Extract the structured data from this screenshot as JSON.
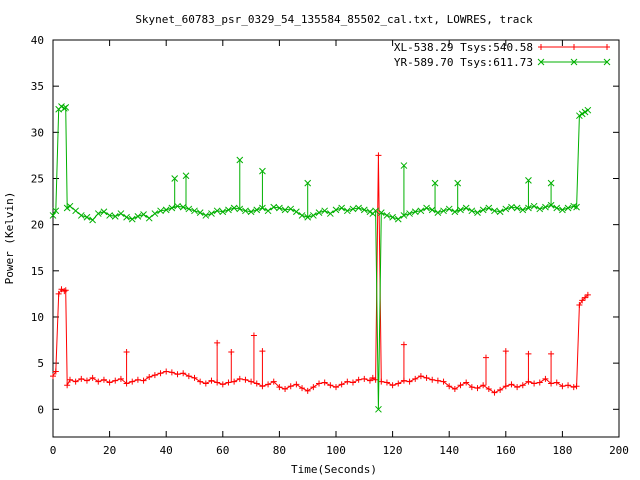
{
  "chart_data": {
    "type": "line",
    "title": "Skynet_60783_psr_0329_54_135584_85502_cal.txt, LOWRES, track",
    "xlabel": "Time(Seconds)",
    "ylabel": "Power (Kelvin)",
    "xlim": [
      0,
      200
    ],
    "ylim": [
      -3,
      40
    ],
    "x_ticks": [
      0,
      20,
      40,
      60,
      80,
      100,
      120,
      140,
      160,
      180,
      200
    ],
    "y_ticks": [
      0,
      5,
      10,
      15,
      20,
      25,
      30,
      35,
      40
    ],
    "grid": false,
    "legend_position": "top-right",
    "series": [
      {
        "name": "XL-538.29 Tsys:540.58",
        "color": "#ff0000",
        "marker": "plus",
        "points": [
          [
            0,
            3.6
          ],
          [
            1,
            4.1
          ],
          [
            2,
            12.5
          ],
          [
            3,
            13.0
          ],
          [
            4,
            12.8
          ],
          [
            4.5,
            12.9
          ],
          [
            5,
            2.6
          ],
          [
            6,
            3.2
          ],
          [
            8,
            3.0
          ],
          [
            10,
            3.3
          ],
          [
            12,
            3.1
          ],
          [
            14,
            3.4
          ],
          [
            16,
            3.0
          ],
          [
            18,
            3.2
          ],
          [
            20,
            2.9
          ],
          [
            22,
            3.1
          ],
          [
            24,
            3.3
          ],
          [
            26,
            2.8
          ],
          [
            28,
            3.0
          ],
          [
            30,
            3.2
          ],
          [
            32,
            3.1
          ],
          [
            34,
            3.5
          ],
          [
            36,
            3.7
          ],
          [
            38,
            3.9
          ],
          [
            40,
            4.1
          ],
          [
            42,
            4.0
          ],
          [
            44,
            3.8
          ],
          [
            46,
            3.9
          ],
          [
            48,
            3.6
          ],
          [
            50,
            3.4
          ],
          [
            52,
            3.0
          ],
          [
            54,
            2.8
          ],
          [
            56,
            3.1
          ],
          [
            58,
            2.9
          ],
          [
            60,
            2.7
          ],
          [
            62,
            2.9
          ],
          [
            64,
            3.0
          ],
          [
            66,
            3.3
          ],
          [
            68,
            3.2
          ],
          [
            70,
            3.0
          ],
          [
            72,
            2.8
          ],
          [
            74,
            2.5
          ],
          [
            76,
            2.7
          ],
          [
            78,
            3.0
          ],
          [
            80,
            2.4
          ],
          [
            82,
            2.2
          ],
          [
            84,
            2.5
          ],
          [
            86,
            2.7
          ],
          [
            88,
            2.3
          ],
          [
            90,
            2.0
          ],
          [
            92,
            2.4
          ],
          [
            94,
            2.8
          ],
          [
            96,
            2.9
          ],
          [
            98,
            2.6
          ],
          [
            100,
            2.4
          ],
          [
            102,
            2.7
          ],
          [
            104,
            3.0
          ],
          [
            106,
            2.9
          ],
          [
            108,
            3.2
          ],
          [
            110,
            3.3
          ],
          [
            112,
            3.1
          ],
          [
            113,
            3.4
          ],
          [
            114,
            3.2
          ],
          [
            115,
            27.5
          ],
          [
            116,
            3.0
          ],
          [
            118,
            2.9
          ],
          [
            120,
            2.6
          ],
          [
            122,
            2.8
          ],
          [
            124,
            3.1
          ],
          [
            126,
            3.0
          ],
          [
            128,
            3.3
          ],
          [
            130,
            3.6
          ],
          [
            132,
            3.4
          ],
          [
            134,
            3.2
          ],
          [
            136,
            3.1
          ],
          [
            138,
            3.0
          ],
          [
            140,
            2.5
          ],
          [
            142,
            2.2
          ],
          [
            144,
            2.6
          ],
          [
            146,
            2.9
          ],
          [
            148,
            2.4
          ],
          [
            150,
            2.3
          ],
          [
            152,
            2.6
          ],
          [
            154,
            2.2
          ],
          [
            156,
            1.8
          ],
          [
            158,
            2.1
          ],
          [
            160,
            2.5
          ],
          [
            162,
            2.7
          ],
          [
            164,
            2.4
          ],
          [
            166,
            2.6
          ],
          [
            168,
            3.0
          ],
          [
            170,
            2.8
          ],
          [
            172,
            2.9
          ],
          [
            174,
            3.3
          ],
          [
            176,
            2.8
          ],
          [
            178,
            2.9
          ],
          [
            180,
            2.5
          ],
          [
            182,
            2.6
          ],
          [
            184,
            2.4
          ],
          [
            185,
            2.5
          ],
          [
            186,
            11.3
          ],
          [
            187,
            11.8
          ],
          [
            188,
            12.1
          ],
          [
            189,
            12.4
          ]
        ]
      },
      {
        "name": "YR-589.70 Tsys:611.73",
        "color": "#00b000",
        "marker": "cross",
        "points": [
          [
            0,
            21.0
          ],
          [
            1,
            21.5
          ],
          [
            2,
            32.5
          ],
          [
            3,
            32.8
          ],
          [
            4,
            32.6
          ],
          [
            4.5,
            32.7
          ],
          [
            5,
            21.8
          ],
          [
            6,
            22.0
          ],
          [
            8,
            21.5
          ],
          [
            10,
            21.0
          ],
          [
            12,
            20.8
          ],
          [
            14,
            20.5
          ],
          [
            16,
            21.2
          ],
          [
            18,
            21.4
          ],
          [
            20,
            21.0
          ],
          [
            22,
            20.9
          ],
          [
            24,
            21.2
          ],
          [
            26,
            20.8
          ],
          [
            28,
            20.6
          ],
          [
            30,
            20.9
          ],
          [
            32,
            21.1
          ],
          [
            34,
            20.7
          ],
          [
            36,
            21.2
          ],
          [
            38,
            21.5
          ],
          [
            40,
            21.6
          ],
          [
            42,
            21.8
          ],
          [
            44,
            22.0
          ],
          [
            46,
            21.9
          ],
          [
            48,
            21.7
          ],
          [
            50,
            21.5
          ],
          [
            52,
            21.3
          ],
          [
            54,
            21.0
          ],
          [
            56,
            21.2
          ],
          [
            58,
            21.5
          ],
          [
            60,
            21.4
          ],
          [
            62,
            21.6
          ],
          [
            64,
            21.8
          ],
          [
            66,
            21.7
          ],
          [
            68,
            21.5
          ],
          [
            70,
            21.4
          ],
          [
            72,
            21.6
          ],
          [
            74,
            21.8
          ],
          [
            76,
            21.5
          ],
          [
            78,
            21.9
          ],
          [
            80,
            21.8
          ],
          [
            82,
            21.6
          ],
          [
            84,
            21.7
          ],
          [
            86,
            21.4
          ],
          [
            88,
            21.0
          ],
          [
            90,
            20.8
          ],
          [
            92,
            21.0
          ],
          [
            94,
            21.3
          ],
          [
            96,
            21.5
          ],
          [
            98,
            21.2
          ],
          [
            100,
            21.6
          ],
          [
            102,
            21.8
          ],
          [
            104,
            21.5
          ],
          [
            106,
            21.7
          ],
          [
            108,
            21.8
          ],
          [
            110,
            21.6
          ],
          [
            112,
            21.4
          ],
          [
            113,
            21.2
          ],
          [
            114,
            21.5
          ],
          [
            115,
            0.0
          ],
          [
            116,
            21.3
          ],
          [
            118,
            21.0
          ],
          [
            120,
            20.8
          ],
          [
            122,
            20.6
          ],
          [
            124,
            21.0
          ],
          [
            126,
            21.2
          ],
          [
            128,
            21.4
          ],
          [
            130,
            21.5
          ],
          [
            132,
            21.8
          ],
          [
            134,
            21.6
          ],
          [
            136,
            21.3
          ],
          [
            138,
            21.5
          ],
          [
            140,
            21.7
          ],
          [
            142,
            21.4
          ],
          [
            144,
            21.6
          ],
          [
            146,
            21.8
          ],
          [
            148,
            21.5
          ],
          [
            150,
            21.3
          ],
          [
            152,
            21.6
          ],
          [
            154,
            21.8
          ],
          [
            156,
            21.5
          ],
          [
            158,
            21.4
          ],
          [
            160,
            21.7
          ],
          [
            162,
            21.9
          ],
          [
            164,
            21.8
          ],
          [
            166,
            21.6
          ],
          [
            168,
            21.8
          ],
          [
            170,
            22.0
          ],
          [
            172,
            21.7
          ],
          [
            174,
            21.9
          ],
          [
            176,
            22.1
          ],
          [
            178,
            21.8
          ],
          [
            180,
            21.6
          ],
          [
            182,
            21.8
          ],
          [
            184,
            22.0
          ],
          [
            185,
            21.9
          ],
          [
            186,
            31.8
          ],
          [
            187,
            32.0
          ],
          [
            188,
            32.2
          ],
          [
            189,
            32.4
          ]
        ]
      }
    ],
    "spikes": {
      "XL-538.29 Tsys:540.58": [
        [
          26,
          6.2
        ],
        [
          58,
          7.2
        ],
        [
          63,
          6.2
        ],
        [
          71,
          8.0
        ],
        [
          74,
          6.3
        ],
        [
          124,
          7.0
        ],
        [
          153,
          5.6
        ],
        [
          160,
          6.3
        ],
        [
          168,
          6.0
        ],
        [
          176,
          6.0
        ]
      ],
      "YR-589.70 Tsys:611.73": [
        [
          43,
          25.0
        ],
        [
          47,
          25.3
        ],
        [
          66,
          27.0
        ],
        [
          74,
          25.8
        ],
        [
          90,
          24.5
        ],
        [
          124,
          26.4
        ],
        [
          135,
          24.5
        ],
        [
          143,
          24.5
        ],
        [
          168,
          24.8
        ],
        [
          176,
          24.5
        ]
      ]
    }
  }
}
